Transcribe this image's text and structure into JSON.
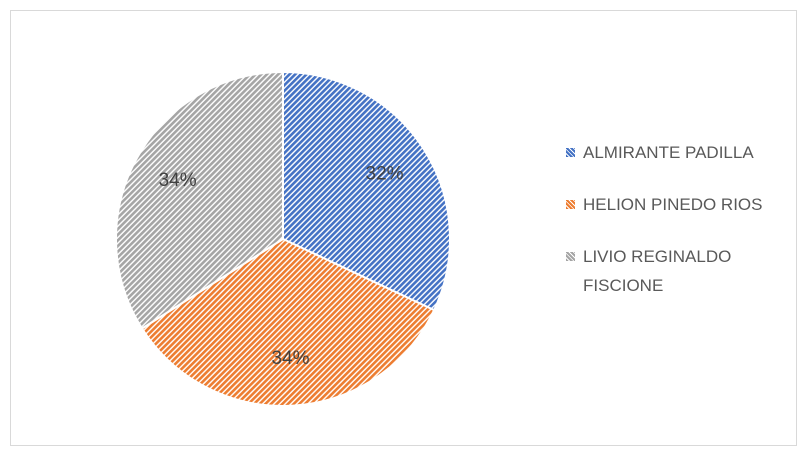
{
  "chart_data": {
    "type": "pie",
    "categories": [
      "ALMIRANTE PADILLA",
      "HELION PINEDO RIOS",
      "LIVIO REGINALDO FISCIONE"
    ],
    "values": [
      32,
      34,
      34
    ],
    "value_labels": [
      "32%",
      "34%",
      "34%"
    ],
    "colors": [
      "#4472c4",
      "#ed7d31",
      "#a5a5a5"
    ],
    "legend": "right"
  }
}
